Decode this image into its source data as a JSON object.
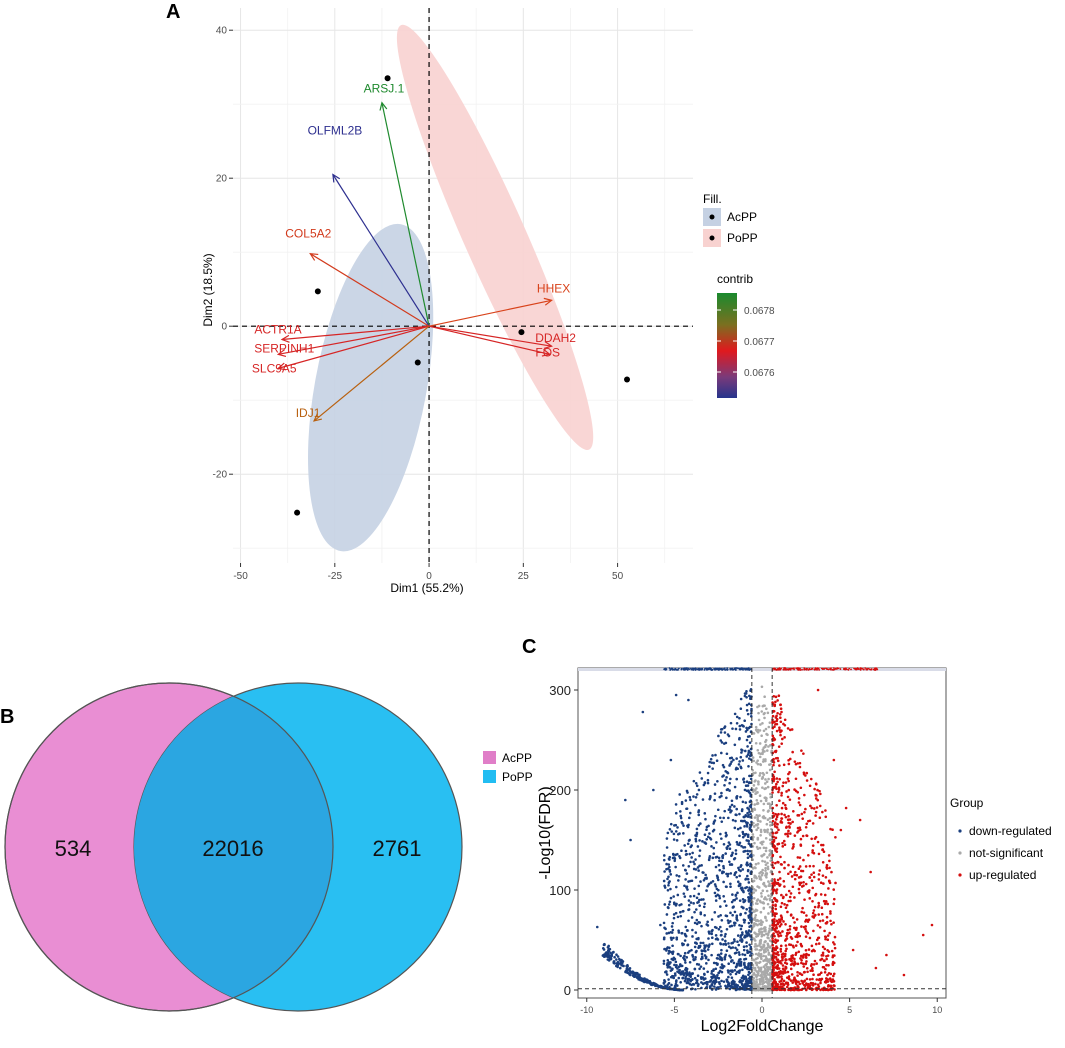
{
  "panels": {
    "a": "A",
    "b": "B",
    "c": "C"
  },
  "chart_data": [
    {
      "id": "pca",
      "type": "scatter",
      "subtype": "pca-biplot",
      "xlabel": "Dim1 (55.2%)",
      "ylabel": "Dim2 (18.5%)",
      "xlim": [
        -52,
        70
      ],
      "ylim": [
        -32,
        43
      ],
      "xticks": [
        -50,
        -25,
        0,
        25,
        50
      ],
      "xtick_labels": [
        "-50",
        "-25",
        "0",
        "25",
        "50"
      ],
      "yticks": [
        -20,
        0,
        20,
        40
      ],
      "ytick_labels": [
        "-20",
        "0",
        "20",
        "40"
      ],
      "points": [
        {
          "x": -11,
          "y": 33.5,
          "group": "PoPP"
        },
        {
          "x": -29.5,
          "y": 4.7,
          "group": "AcPP"
        },
        {
          "x": -3,
          "y": -4.9,
          "group": "AcPP"
        },
        {
          "x": -35,
          "y": -25.2,
          "group": "AcPP"
        },
        {
          "x": 24.5,
          "y": -0.8,
          "group": "PoPP"
        },
        {
          "x": 52.5,
          "y": -7.2,
          "group": "PoPP"
        }
      ],
      "ellipses": [
        {
          "group": "AcPP",
          "cx": -15.5,
          "cy": -8.3,
          "rx": 23.5,
          "ry": 12.8,
          "angle_deg": 70,
          "color": "#c5d1e3"
        },
        {
          "group": "PoPP",
          "cx": 17.5,
          "cy": 12,
          "rx": 38,
          "ry": 5.5,
          "angle_deg": -49,
          "color": "#f8d2d0"
        }
      ],
      "variables": [
        {
          "name": "ARSJ.1",
          "x": -12.5,
          "y": 30.2,
          "color": "#1f8a2e"
        },
        {
          "name": "OLFML2B",
          "x": -25.5,
          "y": 20.5,
          "color": "#2d2f8f"
        },
        {
          "name": "COL5A2",
          "x": -31.5,
          "y": 9.8,
          "color": "#d23a1c"
        },
        {
          "name": "ACTR1A",
          "x": -39,
          "y": -1.8,
          "color": "#d62525"
        },
        {
          "name": "SERPINH1",
          "x": -40,
          "y": -3.8,
          "color": "#d62525"
        },
        {
          "name": "SLC9A5",
          "x": -40,
          "y": -5.7,
          "color": "#d62525"
        },
        {
          "name": "IDJ1",
          "x": -30.5,
          "y": -12.8,
          "color": "#b8600f"
        },
        {
          "name": "HHEX",
          "x": 32.5,
          "y": 3.5,
          "color": "#d8421a"
        },
        {
          "name": "DDAH2",
          "x": 32.5,
          "y": -2.7,
          "color": "#d62525"
        },
        {
          "name": "FOS",
          "x": 32,
          "y": -3.8,
          "color": "#d62525"
        }
      ],
      "legend_fill": {
        "title": "Fill.",
        "items": [
          {
            "label": "AcPP",
            "color": "#c5d1e3"
          },
          {
            "label": "PoPP",
            "color": "#f8d2d0"
          }
        ]
      },
      "legend_contrib": {
        "title": "contrib",
        "ticks": [
          "0.0678",
          "0.0677",
          "0.0676"
        ],
        "tick_values": [
          0.0678,
          0.0677,
          0.0676
        ],
        "colors": [
          "#1a8a2e",
          "#7a7020",
          "#e0191e",
          "#7a3a7a",
          "#26348c"
        ]
      }
    },
    {
      "id": "venn",
      "type": "venn",
      "sets": [
        {
          "name": "AcPP",
          "color": "#e07ec8"
        },
        {
          "name": "PoPP",
          "color": "#22bdf2"
        }
      ],
      "regions": {
        "only_AcPP": "534",
        "both": "22016",
        "only_PoPP": "2761"
      },
      "legend": [
        "AcPP",
        "PoPP"
      ]
    },
    {
      "id": "volcano",
      "type": "scatter",
      "subtype": "volcano",
      "xlabel": "Log2FoldChange",
      "ylabel": "-Log10(FDR)",
      "xlim": [
        -10.5,
        10.5
      ],
      "ylim": [
        -8,
        322
      ],
      "xticks": [
        -10,
        -5,
        0,
        5,
        10
      ],
      "xtick_labels": [
        "-10",
        "-5",
        "0",
        "5",
        "10"
      ],
      "yticks": [
        0,
        100,
        200,
        300
      ],
      "ytick_labels": [
        "0",
        "100",
        "200",
        "300"
      ],
      "fc_threshold": [
        -0.58,
        0.58
      ],
      "fdr_threshold": 1.3,
      "legend": {
        "title": "Group",
        "items": [
          {
            "label": "down-regulated",
            "color": "#1b3f7f"
          },
          {
            "label": "not-significant",
            "color": "#a9a9a9"
          },
          {
            "label": "up-regulated",
            "color": "#d40f0f"
          }
        ]
      }
    }
  ]
}
